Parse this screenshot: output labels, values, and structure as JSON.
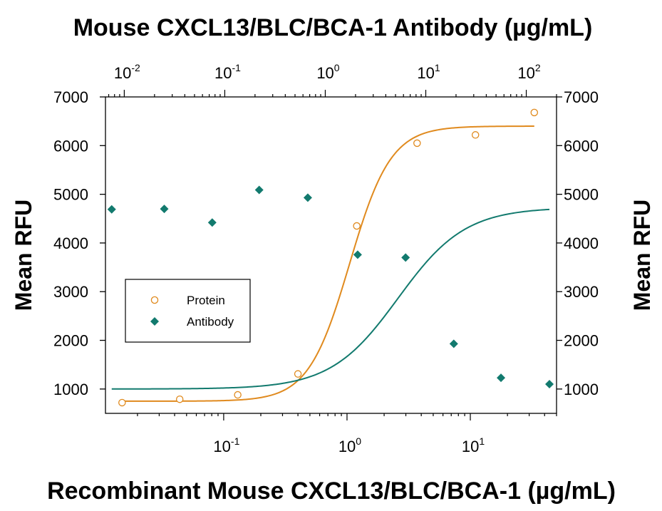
{
  "chart_data": {
    "type": "scatter",
    "title": "Mouse CXCL13/BLC/BCA-1 Antibody (µg/mL)",
    "xlabel": "Recombinant Mouse CXCL13/BLC/BCA-1 (µg/mL)",
    "ylabel": "Mean RFU",
    "ylabel_right": "Mean RFU",
    "x_scale": "log",
    "x_bottom_range": [
      0.011,
      50
    ],
    "x_top_range": [
      0.0065,
      200
    ],
    "ylim": [
      500,
      7000
    ],
    "y_ticks": [
      1000,
      2000,
      3000,
      4000,
      5000,
      6000,
      7000
    ],
    "y_tick_labels": [
      "1000",
      "2000",
      "3000",
      "4000",
      "5000",
      "6000",
      "7000"
    ],
    "x_bottom_ticks": [
      {
        "value": 0.1,
        "base": "10",
        "exp": "-1"
      },
      {
        "value": 1,
        "base": "10",
        "exp": "0"
      },
      {
        "value": 10,
        "base": "10",
        "exp": "1"
      }
    ],
    "x_top_ticks": [
      {
        "value": 0.01,
        "base": "10",
        "exp": "-2"
      },
      {
        "value": 0.1,
        "base": "10",
        "exp": "-1"
      },
      {
        "value": 1,
        "base": "10",
        "exp": "0"
      },
      {
        "value": 10,
        "base": "10",
        "exp": "1"
      },
      {
        "value": 100,
        "base": "10",
        "exp": "2"
      }
    ],
    "grid": false,
    "legend_position": "center-left",
    "series": [
      {
        "name": "Protein",
        "axis": "bottom",
        "marker": "open-circle",
        "color": "#E08A1E",
        "x": [
          0.015,
          0.044,
          0.13,
          0.4,
          1.2,
          3.7,
          11,
          33
        ],
        "y": [
          720,
          790,
          880,
          1310,
          4350,
          6050,
          6220,
          6680
        ],
        "fit": {
          "bottom": 750,
          "top": 6400,
          "ec50": 1.05,
          "hill": 2.6
        }
      },
      {
        "name": "Antibody",
        "axis": "top",
        "marker": "filled-diamond",
        "color": "#127A6E",
        "x": [
          0.0075,
          0.025,
          0.075,
          0.22,
          0.67,
          2.1,
          6.3,
          19,
          56,
          170
        ],
        "y": [
          4690,
          4700,
          4420,
          5090,
          4930,
          3760,
          3700,
          1930,
          1230,
          1100
        ],
        "fit": {
          "bottom": 1000,
          "top": 4730,
          "ec50": 5.3,
          "hill": 1.3
        }
      }
    ]
  }
}
